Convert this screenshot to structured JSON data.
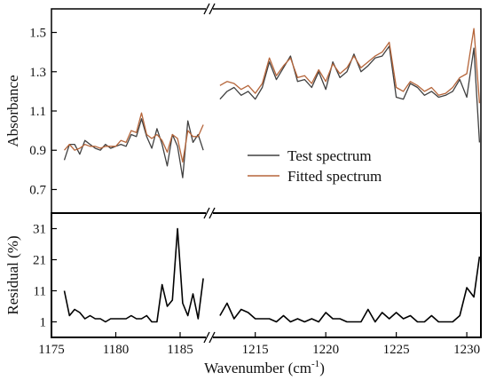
{
  "chart_data": [
    {
      "type": "line",
      "panel": "top",
      "ylabel": "Absorbance",
      "yticks": [
        0.7,
        0.9,
        1.1,
        1.3,
        1.5
      ],
      "ylim": [
        0.58,
        1.62
      ],
      "xlim_segments": [
        [
          1175,
          1187
        ],
        [
          1212,
          1231
        ]
      ],
      "x_break": true,
      "legend": {
        "placement": "center-right",
        "entries": [
          "Test spectrum",
          "Fitted spectrum"
        ]
      },
      "series": [
        {
          "name": "Test spectrum",
          "color": "#404040",
          "segments": [
            {
              "x": [
                1176.0,
                1176.4,
                1176.8,
                1177.2,
                1177.6,
                1178.0,
                1178.4,
                1178.8,
                1179.2,
                1179.6,
                1180.0,
                1180.4,
                1180.8,
                1181.2,
                1181.6,
                1182.0,
                1182.4,
                1182.8,
                1183.2,
                1183.6,
                1184.0,
                1184.4,
                1184.8,
                1185.2,
                1185.6,
                1186.0,
                1186.4,
                1186.8
              ],
              "y": [
                0.85,
                0.93,
                0.93,
                0.88,
                0.95,
                0.93,
                0.91,
                0.9,
                0.93,
                0.91,
                0.92,
                0.93,
                0.92,
                0.98,
                0.97,
                1.06,
                0.97,
                0.91,
                1.01,
                0.93,
                0.82,
                0.98,
                0.92,
                0.76,
                1.05,
                0.94,
                0.98,
                0.9
              ]
            },
            {
              "x": [
                1212.5,
                1213.0,
                1213.5,
                1214.0,
                1214.5,
                1215.0,
                1215.5,
                1216.0,
                1216.5,
                1217.0,
                1217.5,
                1218.0,
                1218.5,
                1219.0,
                1219.5,
                1220.0,
                1220.5,
                1221.0,
                1221.5,
                1222.0,
                1222.5,
                1223.0,
                1223.5,
                1224.0,
                1224.5,
                1225.0,
                1225.5,
                1226.0,
                1226.5,
                1227.0,
                1227.5,
                1228.0,
                1228.5,
                1229.0,
                1229.5,
                1230.0,
                1230.5,
                1230.9
              ],
              "y": [
                1.16,
                1.2,
                1.22,
                1.18,
                1.2,
                1.16,
                1.22,
                1.35,
                1.26,
                1.32,
                1.38,
                1.25,
                1.26,
                1.22,
                1.3,
                1.21,
                1.35,
                1.27,
                1.3,
                1.39,
                1.3,
                1.33,
                1.37,
                1.38,
                1.43,
                1.17,
                1.16,
                1.24,
                1.22,
                1.18,
                1.2,
                1.17,
                1.18,
                1.2,
                1.26,
                1.17,
                1.42,
                0.94
              ]
            }
          ]
        },
        {
          "name": "Fitted spectrum",
          "color": "#b5653a",
          "segments": [
            {
              "x": [
                1176.0,
                1176.4,
                1176.8,
                1177.2,
                1177.6,
                1178.0,
                1178.4,
                1178.8,
                1179.2,
                1179.6,
                1180.0,
                1180.4,
                1180.8,
                1181.2,
                1181.6,
                1182.0,
                1182.4,
                1182.8,
                1183.2,
                1183.6,
                1184.0,
                1184.4,
                1184.8,
                1185.2,
                1185.6,
                1186.0,
                1186.4,
                1186.8
              ],
              "y": [
                0.9,
                0.93,
                0.9,
                0.91,
                0.93,
                0.92,
                0.92,
                0.91,
                0.92,
                0.92,
                0.92,
                0.95,
                0.94,
                1.0,
                0.99,
                1.09,
                0.98,
                0.96,
                0.98,
                0.95,
                0.89,
                0.98,
                0.96,
                0.84,
                1.0,
                0.97,
                0.97,
                1.03
              ]
            },
            {
              "x": [
                1212.5,
                1213.0,
                1213.5,
                1214.0,
                1214.5,
                1215.0,
                1215.5,
                1216.0,
                1216.5,
                1217.0,
                1217.5,
                1218.0,
                1218.5,
                1219.0,
                1219.5,
                1220.0,
                1220.5,
                1221.0,
                1221.5,
                1222.0,
                1222.5,
                1223.0,
                1223.5,
                1224.0,
                1224.5,
                1225.0,
                1225.5,
                1226.0,
                1226.5,
                1227.0,
                1227.5,
                1228.0,
                1228.5,
                1229.0,
                1229.5,
                1230.0,
                1230.5,
                1230.9
              ],
              "y": [
                1.23,
                1.25,
                1.24,
                1.21,
                1.23,
                1.19,
                1.24,
                1.37,
                1.28,
                1.33,
                1.37,
                1.27,
                1.28,
                1.24,
                1.31,
                1.25,
                1.34,
                1.29,
                1.32,
                1.38,
                1.32,
                1.35,
                1.38,
                1.4,
                1.45,
                1.22,
                1.2,
                1.25,
                1.23,
                1.2,
                1.22,
                1.18,
                1.19,
                1.22,
                1.27,
                1.29,
                1.52,
                1.14
              ]
            }
          ]
        }
      ]
    },
    {
      "type": "line",
      "panel": "bottom",
      "xlabel": "Wavenumber (cm",
      "xlabel_sup": "-1",
      "xlabel_close": ")",
      "ylabel": "Residual (%)",
      "yticks": [
        1,
        11,
        21,
        31
      ],
      "ylim": [
        -4,
        36
      ],
      "xticks_segments": [
        [
          1175,
          1180,
          1185
        ],
        [
          1215,
          1220,
          1225,
          1230
        ]
      ],
      "xlim_segments": [
        [
          1175,
          1187
        ],
        [
          1212,
          1231
        ]
      ],
      "x_break": true,
      "series": [
        {
          "name": "",
          "color": "#000000",
          "segments": [
            {
              "x": [
                1176.0,
                1176.4,
                1176.8,
                1177.2,
                1177.6,
                1178.0,
                1178.4,
                1178.8,
                1179.2,
                1179.6,
                1180.0,
                1180.4,
                1180.8,
                1181.2,
                1181.6,
                1182.0,
                1182.4,
                1182.8,
                1183.2,
                1183.6,
                1184.0,
                1184.4,
                1184.8,
                1185.2,
                1185.6,
                1186.0,
                1186.4,
                1186.8
              ],
              "y": [
                11,
                3,
                5,
                4,
                2,
                3,
                2,
                2,
                1,
                2,
                2,
                2,
                2,
                3,
                2,
                2,
                3,
                1,
                1,
                13,
                6,
                8,
                31,
                7,
                3,
                10,
                2,
                15
              ]
            },
            {
              "x": [
                1212.5,
                1213.0,
                1213.5,
                1214.0,
                1214.5,
                1215.0,
                1215.5,
                1216.0,
                1216.5,
                1217.0,
                1217.5,
                1218.0,
                1218.5,
                1219.0,
                1219.5,
                1220.0,
                1220.5,
                1221.0,
                1221.5,
                1222.0,
                1222.5,
                1223.0,
                1223.5,
                1224.0,
                1224.5,
                1225.0,
                1225.5,
                1226.0,
                1226.5,
                1227.0,
                1227.5,
                1228.0,
                1228.5,
                1229.0,
                1229.5,
                1230.0,
                1230.5,
                1230.9
              ],
              "y": [
                3,
                7,
                2,
                5,
                4,
                2,
                2,
                2,
                1,
                3,
                1,
                2,
                1,
                2,
                1,
                4,
                2,
                2,
                1,
                1,
                1,
                5,
                1,
                4,
                2,
                4,
                2,
                3,
                1,
                1,
                3,
                1,
                1,
                1,
                3,
                12,
                9,
                22
              ]
            }
          ]
        }
      ]
    }
  ]
}
